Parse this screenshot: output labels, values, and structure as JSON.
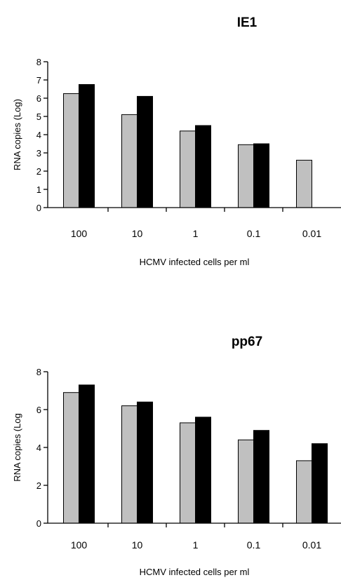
{
  "chart_data": [
    {
      "type": "bar",
      "title": "IE1",
      "xlabel": "HCMV infected cells per ml",
      "ylabel": "RNA copies (Log)",
      "categories": [
        "100",
        "10",
        "1",
        "0.1",
        "0.01"
      ],
      "ylim": [
        0,
        8
      ],
      "yticks": [
        0,
        1,
        2,
        3,
        4,
        5,
        6,
        7,
        8
      ],
      "series": [
        {
          "color": "#c0c0c0",
          "values": [
            6.25,
            5.1,
            4.2,
            3.45,
            2.6
          ]
        },
        {
          "color": "#000000",
          "values": [
            6.75,
            6.1,
            4.5,
            3.5,
            null
          ]
        }
      ],
      "grid": false
    },
    {
      "type": "bar",
      "title": "pp67",
      "xlabel": "HCMV infected cells per ml",
      "ylabel": "RNA copies (Log",
      "categories": [
        "100",
        "10",
        "1",
        "0.1",
        "0.01"
      ],
      "ylim": [
        0,
        8
      ],
      "yticks": [
        0,
        2,
        4,
        6,
        8
      ],
      "series": [
        {
          "color": "#c0c0c0",
          "values": [
            6.9,
            6.2,
            5.3,
            4.4,
            3.3
          ]
        },
        {
          "color": "#000000",
          "values": [
            7.3,
            6.4,
            5.6,
            4.9,
            4.2
          ]
        }
      ],
      "grid": false
    }
  ]
}
